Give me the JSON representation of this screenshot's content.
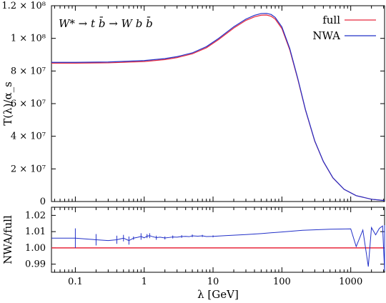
{
  "chart_data": [
    {
      "type": "line",
      "panel": "main",
      "annotation": "W* → t b̄ → W b b̄",
      "xlabel": "",
      "ylabel": "T(λ)/α_s",
      "xscale": "log",
      "xlim": [
        0.045,
        3100
      ],
      "ylim": [
        0,
        120000000.0
      ],
      "yticks": [
        0,
        20000000.0,
        40000000.0,
        60000000.0,
        80000000.0,
        100000000.0,
        120000000.0
      ],
      "ytick_labels": [
        "0",
        "2 × 10⁷",
        "4 × 10⁷",
        "6 × 10⁷",
        "8 × 10⁷",
        "1 × 10⁸",
        "1.2 × 10⁸"
      ],
      "legend_position": "top-right",
      "grid": false,
      "series": [
        {
          "name": "full",
          "color": "#e8283c",
          "x": [
            0.045,
            0.1,
            0.3,
            1,
            2,
            3,
            5,
            8,
            12,
            20,
            30,
            40,
            50,
            60,
            70,
            80,
            100,
            130,
            170,
            220,
            300,
            400,
            550,
            800,
            1200,
            2000,
            3100
          ],
          "y": [
            84800000.0,
            84800000.0,
            85000000.0,
            85800000.0,
            87000000.0,
            88200000.0,
            90500000.0,
            94200000.0,
            99200000.0,
            106300000.0,
            111000000.0,
            113200000.0,
            114200000.0,
            114300000.0,
            113500000.0,
            111800000.0,
            106000000.0,
            93000000.0,
            75000000.0,
            56000000.0,
            37000000.0,
            24500000.0,
            14500000.0,
            7500000.0,
            3600000.0,
            1400000.0,
            600000.0
          ]
        },
        {
          "name": "NWA",
          "color": "#2230c8",
          "x": [
            0.045,
            0.1,
            0.3,
            1,
            2,
            3,
            5,
            8,
            12,
            20,
            30,
            40,
            50,
            60,
            70,
            80,
            100,
            130,
            170,
            220,
            300,
            400,
            550,
            800,
            1200,
            2000,
            3100
          ],
          "y": [
            85300000.0,
            85300000.0,
            85500000.0,
            86400000.0,
            87600000.0,
            88800000.0,
            91100000.0,
            94900000.0,
            99900000.0,
            107100000.0,
            111800000.0,
            114100000.0,
            115200000.0,
            115300000.0,
            114600000.0,
            112800000.0,
            107000000.0,
            93800000.0,
            75500000.0,
            56300000.0,
            37200000.0,
            24600000.0,
            14600000.0,
            7500000.0,
            3600000.0,
            1400000.0,
            600000.0
          ]
        }
      ]
    },
    {
      "type": "line",
      "panel": "ratio",
      "xlabel": "λ [GeV]",
      "ylabel": "NWA/full",
      "xscale": "log",
      "xlim": [
        0.045,
        3100
      ],
      "ylim": [
        0.985,
        1.025
      ],
      "yticks": [
        0.99,
        1.0,
        1.01,
        1.02
      ],
      "ytick_labels": [
        "0.99",
        "1.00",
        "1.01",
        "1.02"
      ],
      "xticks": [
        0.1,
        1,
        10,
        100,
        1000
      ],
      "xtick_labels": [
        "0.1",
        "1",
        "10",
        "100",
        "1000"
      ],
      "grid": false,
      "reference": {
        "y": 1.0,
        "color": "#e8283c"
      },
      "series": [
        {
          "name": "NWA/full",
          "color": "#2230c8",
          "x": [
            0.045,
            0.1,
            0.2,
            0.3,
            0.4,
            0.5,
            0.6,
            0.7,
            0.8,
            0.9,
            1.0,
            1.1,
            1.2,
            1.3,
            1.5,
            1.7,
            2.0,
            2.3,
            2.6,
            3.0,
            3.5,
            4.0,
            4.5,
            5.0,
            6,
            7,
            8,
            10,
            15,
            20,
            30,
            50,
            100,
            200,
            500,
            1000,
            1200,
            1500,
            1800,
            2000,
            2300,
            2600,
            2900,
            3100
          ],
          "y": [
            1.006,
            1.006,
            1.005,
            1.0045,
            1.005,
            1.006,
            1.0045,
            1.006,
            1.0065,
            1.007,
            1.0062,
            1.0072,
            1.0075,
            1.007,
            1.0063,
            1.0066,
            1.0061,
            1.0064,
            1.0067,
            1.0066,
            1.007,
            1.0071,
            1.0069,
            1.0074,
            1.0072,
            1.0074,
            1.007,
            1.0071,
            1.0075,
            1.0078,
            1.0082,
            1.0088,
            1.0098,
            1.0108,
            1.0115,
            1.0117,
            1.0008,
            1.011,
            0.9885,
            1.0125,
            1.008,
            1.012,
            1.0135,
            0.986
          ],
          "errorbars": [
            {
              "x": 0.1,
              "lo": 1.0,
              "hi": 1.012
            },
            {
              "x": 0.2,
              "lo": 1.0015,
              "hi": 1.0085
            },
            {
              "x": 0.4,
              "lo": 1.0025,
              "hi": 1.0075
            },
            {
              "x": 0.5,
              "lo": 1.004,
              "hi": 1.008
            },
            {
              "x": 0.6,
              "lo": 1.002,
              "hi": 1.007
            },
            {
              "x": 0.7,
              "lo": 1.005,
              "hi": 1.007
            },
            {
              "x": 0.9,
              "lo": 1.005,
              "hi": 1.009
            },
            {
              "x": 1.1,
              "lo": 1.006,
              "hi": 1.0085
            },
            {
              "x": 1.2,
              "lo": 1.006,
              "hi": 1.009
            },
            {
              "x": 1.5,
              "lo": 1.005,
              "hi": 1.0075
            },
            {
              "x": 2.0,
              "lo": 1.0052,
              "hi": 1.007
            },
            {
              "x": 2.6,
              "lo": 1.0058,
              "hi": 1.0076
            },
            {
              "x": 3.5,
              "lo": 1.0062,
              "hi": 1.0078
            },
            {
              "x": 5.0,
              "lo": 1.0066,
              "hi": 1.0082
            },
            {
              "x": 7,
              "lo": 1.0067,
              "hi": 1.008
            },
            {
              "x": 10,
              "lo": 1.0065,
              "hi": 1.0077
            },
            {
              "x": 3100,
              "lo": 0.986,
              "hi": 1.014
            }
          ]
        }
      ]
    }
  ]
}
